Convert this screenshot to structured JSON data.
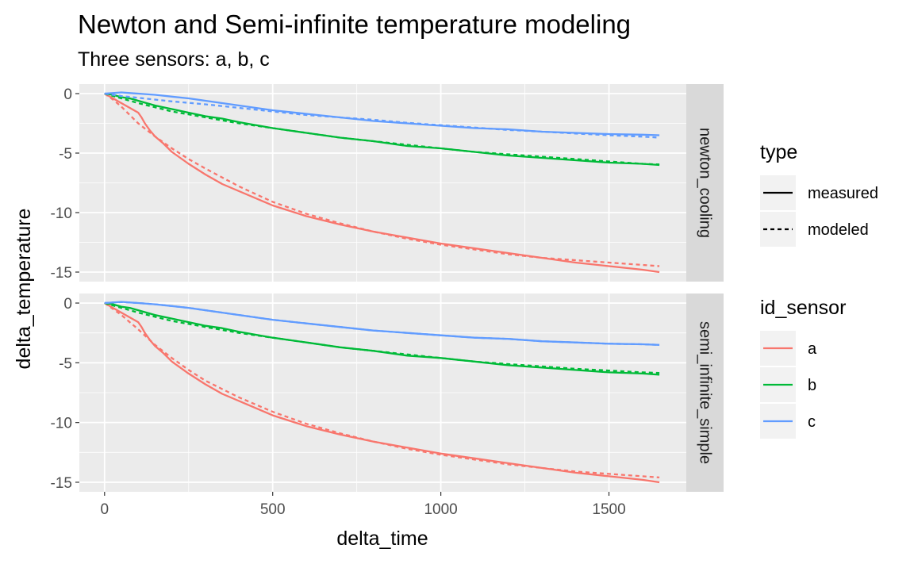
{
  "chart_data": {
    "type": "line",
    "title": "Newton and Semi-infinite temperature modeling",
    "subtitle": "Three sensors: a, b, c",
    "xlabel": "delta_time",
    "ylabel": "delta_temperature",
    "xlim": [
      -75,
      1730
    ],
    "ylim": [
      -15.8,
      0.8
    ],
    "x_ticks": [
      0,
      500,
      1000,
      1500
    ],
    "y_ticks": [
      0,
      -5,
      -10,
      -15
    ],
    "x_tick_labels": [
      "0",
      "500",
      "1000",
      "1500"
    ],
    "y_tick_labels": [
      "0",
      "-5",
      "-10",
      "-15"
    ],
    "grid": true,
    "legend_position": "right",
    "legend": {
      "type": {
        "title": "type",
        "entries": [
          {
            "label": "measured",
            "dash": "solid"
          },
          {
            "label": "modeled",
            "dash": "dotted"
          }
        ]
      },
      "id_sensor": {
        "title": "id_sensor",
        "entries": [
          {
            "label": "a",
            "color": "#F8766D"
          },
          {
            "label": "b",
            "color": "#00BA38"
          },
          {
            "label": "c",
            "color": "#619CFF"
          }
        ]
      }
    },
    "panels": [
      {
        "strip": "newton_cooling",
        "series": [
          {
            "sensor": "a",
            "type": "measured",
            "x": [
              0,
              25,
              50,
              75,
              100,
              110,
              120,
              135,
              150,
              175,
              200,
              250,
              300,
              350,
              400,
              500,
              600,
              700,
              800,
              900,
              1000,
              1100,
              1200,
              1300,
              1400,
              1500,
              1600,
              1650
            ],
            "y": [
              0,
              -0.4,
              -0.8,
              -1.2,
              -1.6,
              -2.0,
              -2.5,
              -3.1,
              -3.6,
              -4.2,
              -4.9,
              -5.9,
              -6.8,
              -7.6,
              -8.2,
              -9.4,
              -10.3,
              -11.0,
              -11.6,
              -12.1,
              -12.6,
              -13.0,
              -13.4,
              -13.8,
              -14.2,
              -14.5,
              -14.8,
              -15.0
            ]
          },
          {
            "sensor": "a",
            "type": "modeled",
            "x": [
              0,
              25,
              50,
              75,
              100,
              150,
              200,
              250,
              300,
              400,
              500,
              600,
              700,
              800,
              900,
              1000,
              1100,
              1200,
              1300,
              1400,
              1500,
              1600,
              1650
            ],
            "y": [
              0,
              -0.5,
              -1.1,
              -1.8,
              -2.5,
              -3.6,
              -4.6,
              -5.5,
              -6.3,
              -7.8,
              -9.1,
              -10.1,
              -10.9,
              -11.6,
              -12.2,
              -12.7,
              -13.1,
              -13.5,
              -13.8,
              -14.0,
              -14.2,
              -14.4,
              -14.5
            ]
          },
          {
            "sensor": "b",
            "type": "measured",
            "x": [
              0,
              25,
              50,
              75,
              100,
              150,
              200,
              250,
              300,
              350,
              400,
              500,
              600,
              700,
              800,
              900,
              1000,
              1100,
              1200,
              1300,
              1400,
              1500,
              1600,
              1650
            ],
            "y": [
              0,
              -0.1,
              -0.3,
              -0.4,
              -0.6,
              -1.0,
              -1.3,
              -1.6,
              -1.9,
              -2.1,
              -2.4,
              -2.9,
              -3.3,
              -3.7,
              -4.0,
              -4.4,
              -4.6,
              -4.9,
              -5.2,
              -5.4,
              -5.6,
              -5.8,
              -5.9,
              -6.0
            ]
          },
          {
            "sensor": "b",
            "type": "modeled",
            "x": [
              0,
              50,
              100,
              200,
              300,
              400,
              500,
              600,
              700,
              800,
              900,
              1000,
              1100,
              1200,
              1300,
              1400,
              1500,
              1600,
              1650
            ],
            "y": [
              0,
              -0.4,
              -0.8,
              -1.5,
              -2.0,
              -2.5,
              -2.9,
              -3.3,
              -3.7,
              -4.0,
              -4.3,
              -4.6,
              -4.9,
              -5.1,
              -5.3,
              -5.5,
              -5.7,
              -5.9,
              -5.95
            ]
          },
          {
            "sensor": "c",
            "type": "measured",
            "x": [
              0,
              25,
              50,
              75,
              100,
              150,
              200,
              250,
              300,
              400,
              500,
              600,
              700,
              800,
              900,
              1000,
              1100,
              1200,
              1300,
              1400,
              1500,
              1600,
              1650
            ],
            "y": [
              0,
              0.05,
              0.1,
              0.05,
              0,
              -0.1,
              -0.25,
              -0.4,
              -0.6,
              -1.0,
              -1.4,
              -1.7,
              -2.0,
              -2.3,
              -2.5,
              -2.7,
              -2.9,
              -3.0,
              -3.2,
              -3.3,
              -3.4,
              -3.45,
              -3.5
            ]
          },
          {
            "sensor": "c",
            "type": "modeled",
            "x": [
              0,
              50,
              100,
              200,
              300,
              400,
              500,
              600,
              700,
              800,
              900,
              1000,
              1100,
              1200,
              1300,
              1400,
              1500,
              1600,
              1650
            ],
            "y": [
              0,
              -0.2,
              -0.35,
              -0.65,
              -0.9,
              -1.2,
              -1.5,
              -1.8,
              -2.0,
              -2.2,
              -2.45,
              -2.65,
              -2.85,
              -3.05,
              -3.2,
              -3.35,
              -3.5,
              -3.62,
              -3.7
            ]
          }
        ]
      },
      {
        "strip": "semi_infinite_simple",
        "series": [
          {
            "sensor": "a",
            "type": "measured",
            "x": [
              0,
              25,
              50,
              75,
              100,
              110,
              120,
              135,
              150,
              175,
              200,
              250,
              300,
              350,
              400,
              500,
              600,
              700,
              800,
              900,
              1000,
              1100,
              1200,
              1300,
              1400,
              1500,
              1600,
              1650
            ],
            "y": [
              0,
              -0.4,
              -0.8,
              -1.2,
              -1.6,
              -2.0,
              -2.5,
              -3.1,
              -3.6,
              -4.2,
              -4.9,
              -5.9,
              -6.8,
              -7.6,
              -8.2,
              -9.4,
              -10.3,
              -11.0,
              -11.6,
              -12.1,
              -12.6,
              -13.0,
              -13.4,
              -13.8,
              -14.2,
              -14.5,
              -14.8,
              -15.0
            ]
          },
          {
            "sensor": "a",
            "type": "modeled",
            "x": [
              0,
              50,
              100,
              150,
              200,
              250,
              300,
              400,
              500,
              600,
              700,
              800,
              900,
              1000,
              1100,
              1200,
              1300,
              1400,
              1500,
              1600,
              1650
            ],
            "y": [
              0,
              -1.0,
              -2.2,
              -3.5,
              -4.6,
              -5.6,
              -6.5,
              -7.9,
              -9.1,
              -10.1,
              -10.9,
              -11.6,
              -12.2,
              -12.7,
              -13.1,
              -13.5,
              -13.8,
              -14.1,
              -14.3,
              -14.5,
              -14.6
            ]
          },
          {
            "sensor": "b",
            "type": "measured",
            "x": [
              0,
              25,
              50,
              75,
              100,
              150,
              200,
              250,
              300,
              350,
              400,
              500,
              600,
              700,
              800,
              900,
              1000,
              1100,
              1200,
              1300,
              1400,
              1500,
              1600,
              1650
            ],
            "y": [
              0,
              -0.1,
              -0.3,
              -0.4,
              -0.6,
              -1.0,
              -1.3,
              -1.6,
              -1.9,
              -2.1,
              -2.4,
              -2.9,
              -3.3,
              -3.7,
              -4.0,
              -4.4,
              -4.6,
              -4.9,
              -5.2,
              -5.4,
              -5.6,
              -5.8,
              -5.9,
              -6.0
            ]
          },
          {
            "sensor": "b",
            "type": "modeled",
            "x": [
              0,
              50,
              100,
              200,
              300,
              400,
              500,
              600,
              700,
              800,
              900,
              1000,
              1100,
              1200,
              1300,
              1400,
              1500,
              1600,
              1650
            ],
            "y": [
              0,
              -0.4,
              -0.8,
              -1.5,
              -2.0,
              -2.5,
              -2.9,
              -3.3,
              -3.7,
              -4.0,
              -4.3,
              -4.6,
              -4.9,
              -5.1,
              -5.3,
              -5.5,
              -5.65,
              -5.8,
              -5.85
            ]
          },
          {
            "sensor": "c",
            "type": "measured",
            "x": [
              0,
              25,
              50,
              75,
              100,
              150,
              200,
              250,
              300,
              400,
              500,
              600,
              700,
              800,
              900,
              1000,
              1100,
              1200,
              1300,
              1400,
              1500,
              1600,
              1650
            ],
            "y": [
              0,
              0.05,
              0.1,
              0.05,
              0,
              -0.1,
              -0.25,
              -0.4,
              -0.6,
              -1.0,
              -1.4,
              -1.7,
              -2.0,
              -2.3,
              -2.5,
              -2.7,
              -2.9,
              -3.0,
              -3.2,
              -3.3,
              -3.4,
              -3.45,
              -3.5
            ]
          },
          {
            "sensor": "c",
            "type": "modeled",
            "x": [
              0,
              25,
              50,
              75,
              100,
              150,
              200,
              250,
              300,
              400,
              500,
              600,
              700,
              800,
              900,
              1000,
              1100,
              1200,
              1300,
              1400,
              1500,
              1600,
              1650
            ],
            "y": [
              0,
              0.05,
              0.08,
              0.05,
              0,
              -0.1,
              -0.25,
              -0.4,
              -0.6,
              -1.0,
              -1.4,
              -1.7,
              -2.0,
              -2.3,
              -2.5,
              -2.7,
              -2.9,
              -3.0,
              -3.2,
              -3.3,
              -3.4,
              -3.45,
              -3.5
            ]
          }
        ]
      }
    ]
  }
}
